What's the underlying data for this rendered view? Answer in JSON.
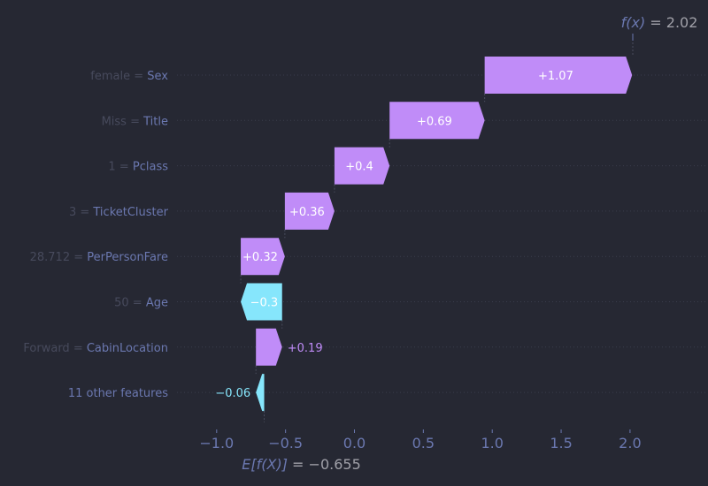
{
  "chart_data": {
    "type": "waterfall",
    "title": "",
    "base_value": -0.655,
    "base_label_prefix": "E[f(X)]",
    "base_label_value": "= −0.655",
    "output_value": 2.02,
    "output_label_prefix": "f(x)",
    "output_label_value": "= 2.02",
    "xlim": [
      -1.2,
      2.3
    ],
    "xticks": [
      -1.0,
      -0.5,
      0.0,
      0.5,
      1.0,
      1.5,
      2.0
    ],
    "xtick_labels": [
      "−1.0",
      "−0.5",
      "0.0",
      "0.5",
      "1.0",
      "1.5",
      "2.0"
    ],
    "features": [
      {
        "value": "female",
        "name": "Sex",
        "shap": 1.07,
        "label": "+1.07"
      },
      {
        "value": "Miss",
        "name": "Title",
        "shap": 0.69,
        "label": "+0.69"
      },
      {
        "value": "1",
        "name": "Pclass",
        "shap": 0.4,
        "label": "+0.4"
      },
      {
        "value": "3",
        "name": "TicketCluster",
        "shap": 0.36,
        "label": "+0.36"
      },
      {
        "value": "28.712",
        "name": "PerPersonFare",
        "shap": 0.32,
        "label": "+0.32"
      },
      {
        "value": "50",
        "name": "Age",
        "shap": -0.3,
        "label": "−0.3"
      },
      {
        "value": "Forward",
        "name": "CabinLocation",
        "shap": 0.19,
        "label": "+0.19"
      },
      {
        "value": "",
        "name": "11 other features",
        "shap": -0.06,
        "label": "−0.06"
      }
    ],
    "colors": {
      "positive": "#c08cf8",
      "negative": "#86e6fc",
      "text": "#6b78b0",
      "muted": "#474a5c",
      "grey": "#a0a0a8",
      "grid": "#3a3d4c"
    }
  }
}
